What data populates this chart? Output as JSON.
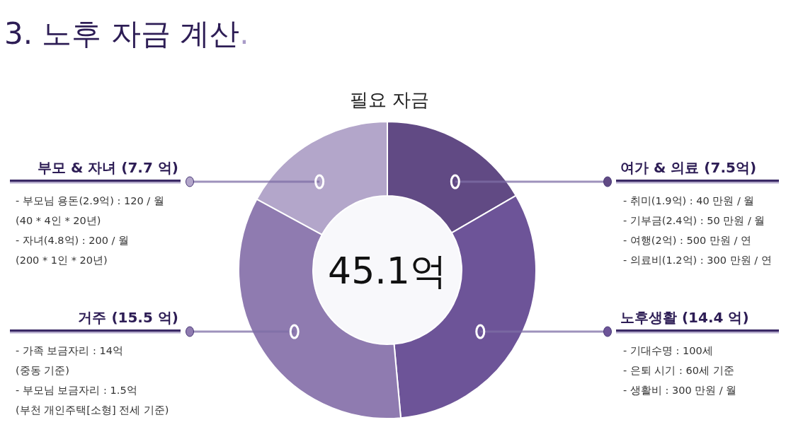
{
  "chart_data": {
    "type": "donut",
    "title": "3. 노후 자금 계산.",
    "subtitle": "필요 자금",
    "categories": [
      "여가 & 의료 (7.5억)",
      "노후생활 (14.4 억)",
      "거주 (15.5 억)",
      "부모 & 자녀 (7.7 억)"
    ],
    "values": [
      7.5,
      14.4,
      15.5,
      7.7
    ],
    "colors": [
      "#614a84",
      "#6d5498",
      "#8f7bb0",
      "#b3a6ca"
    ],
    "annotations": [
      "45.1억",
      "- 취미(1.9억) : 40 만원 / 월\n- 기부금(2.4억) : 50 만원 / 월\n- 여행(2억) : 500 만원 / 연\n- 의료비(1.2억) : 300 만원 / 연",
      "- 기대수명 : 100세\n- 은퇴 시기 : 60세 기준\n- 생활비 : 300 만원 / 월",
      "- 가족 보금자리 : 14억\n(중동 기준)\n- 부모님 보금자리 : 1.5억\n(부천 개인주택[소형] 전세 기준)",
      "- 부모님 용돈(2.9억) : 120 / 월\n(40 * 4인 * 20년)\n- 자녀(4.8억) : 200 / 월\n(200 * 1인 * 20년)"
    ]
  }
}
